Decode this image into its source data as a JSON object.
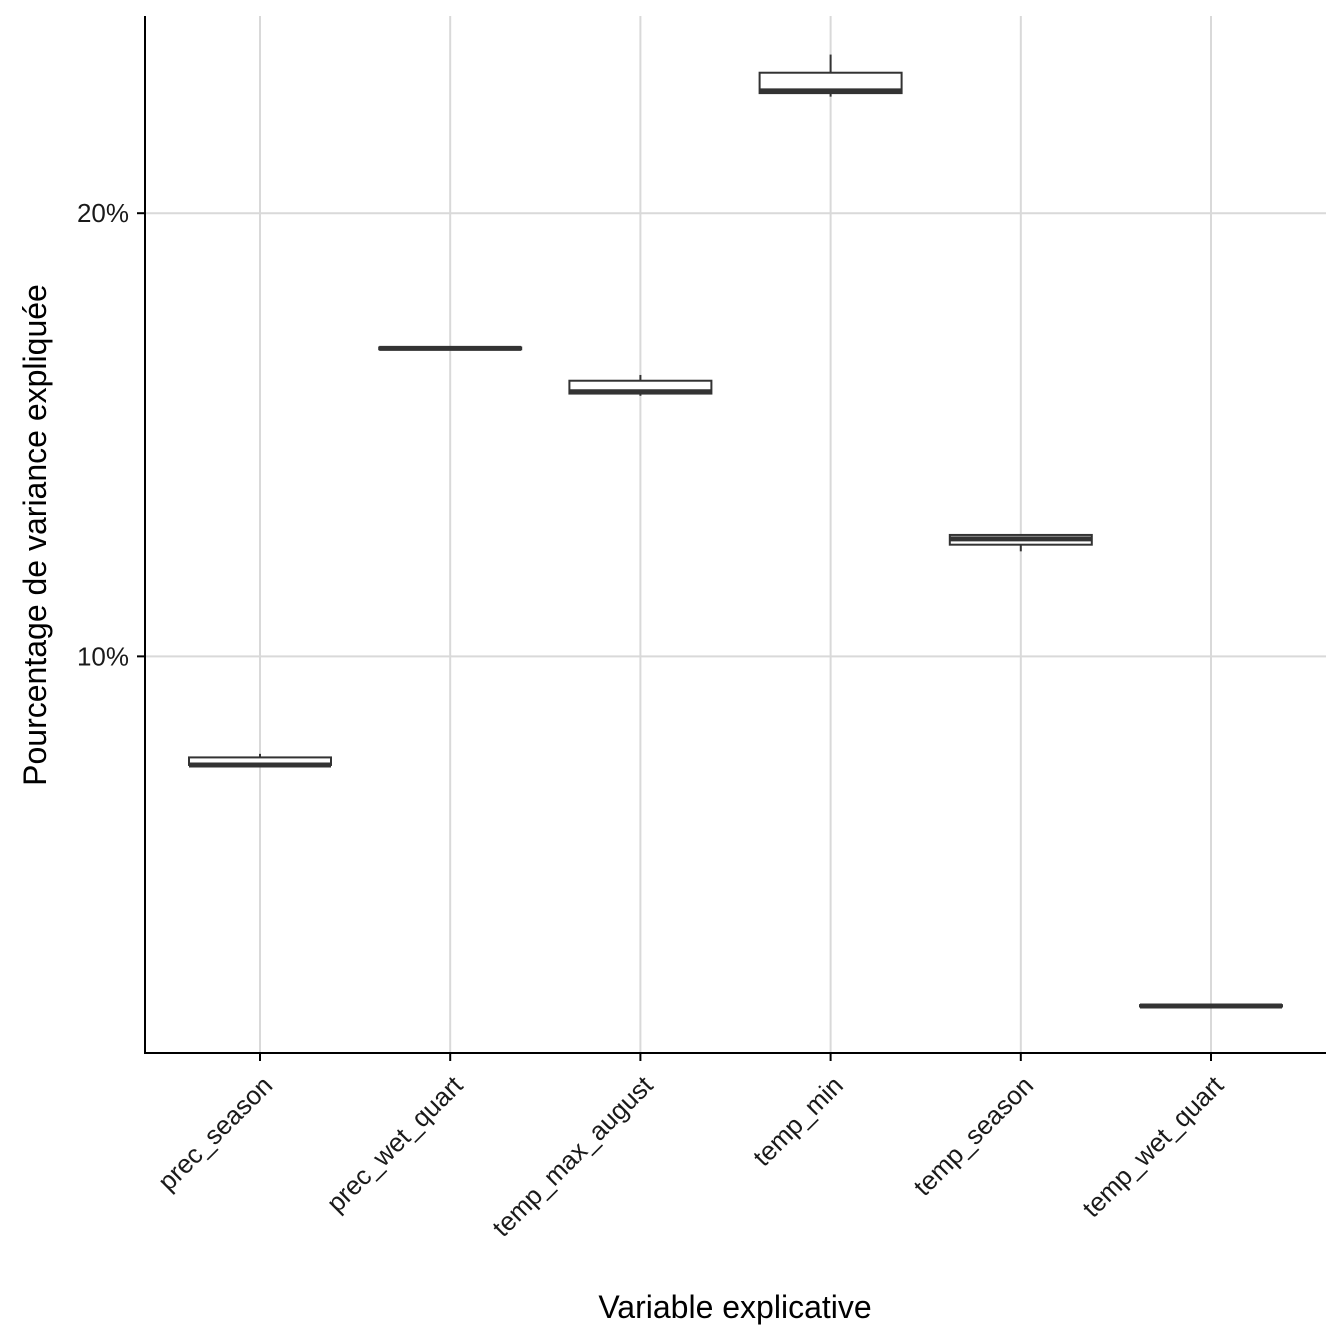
{
  "chart_data": {
    "type": "box",
    "title": "",
    "xlabel": "Variable explicative",
    "ylabel": "Pourcentage de variance expliquée",
    "categories": [
      "prec_season",
      "prec_wet_quart",
      "temp_max_august",
      "temp_min",
      "temp_season",
      "temp_wet_quart"
    ],
    "y_tick_values": [
      10,
      20
    ],
    "y_tick_labels": [
      "10%",
      "20%"
    ],
    "ylim": [
      1.05,
      24.45
    ],
    "grid": true,
    "series": [
      {
        "category": "prec_season",
        "min": 7.5,
        "q1": 7.55,
        "median": 7.55,
        "q3": 7.72,
        "max": 7.8
      },
      {
        "category": "prec_wet_quart",
        "min": 16.93,
        "q1": 16.93,
        "median": 16.95,
        "q3": 16.97,
        "max": 16.97
      },
      {
        "category": "temp_max_august",
        "min": 15.88,
        "q1": 15.93,
        "median": 15.97,
        "q3": 16.22,
        "max": 16.35
      },
      {
        "category": "temp_min",
        "min": 22.63,
        "q1": 22.71,
        "median": 22.76,
        "q3": 23.17,
        "max": 23.58
      },
      {
        "category": "temp_season",
        "min": 12.37,
        "q1": 12.52,
        "median": 12.65,
        "q3": 12.74,
        "max": 12.74
      },
      {
        "category": "temp_wet_quart",
        "min": 2.1,
        "q1": 2.1,
        "median": 2.11,
        "q3": 2.13,
        "max": 2.13
      }
    ],
    "colors": {
      "box_fill": "#ffffff",
      "box_stroke": "#333333",
      "grid": "#d9d9d9",
      "axis": "#000000"
    }
  }
}
